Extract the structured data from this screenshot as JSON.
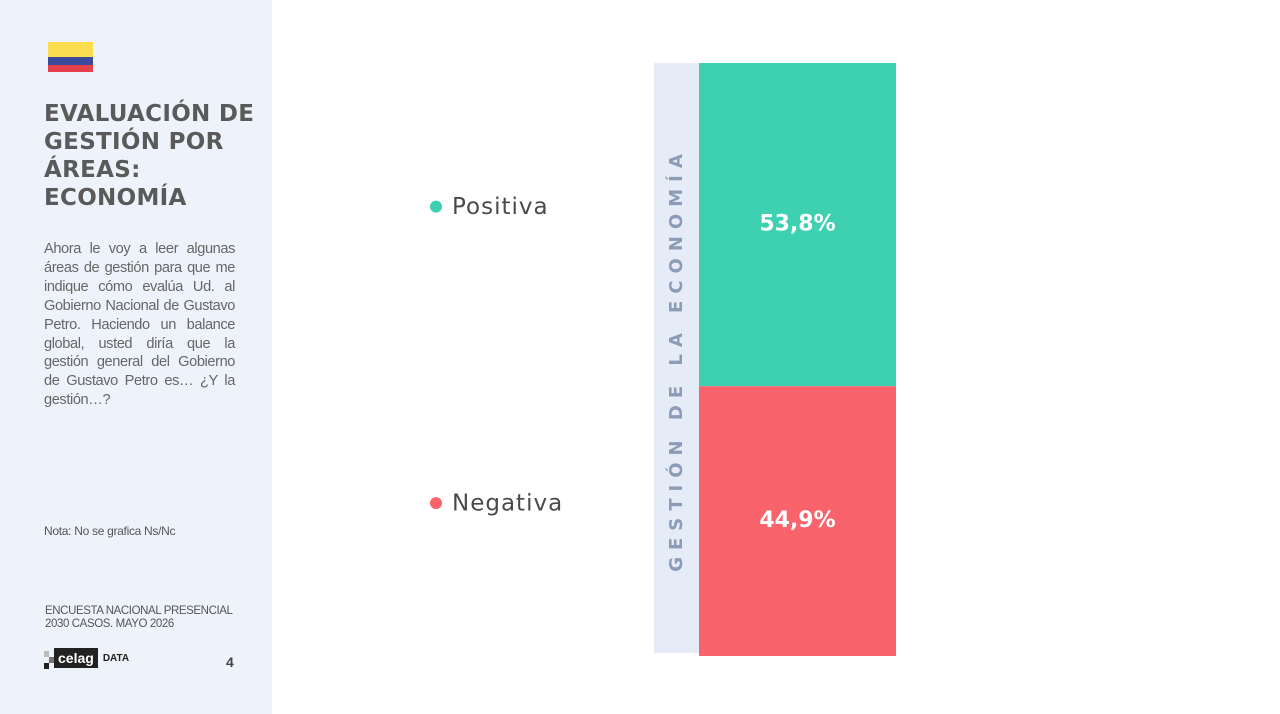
{
  "sidebar": {
    "title_lines": [
      "EVALUACIÓN DE",
      "GESTIÓN POR",
      "ÁREAS:",
      "ECONOMÍA"
    ],
    "description": "Ahora le voy a leer algunas áreas de gestión para que me indique cómo evalúa Ud. al Gobierno Nacional de Gustavo Petro. Haciendo un balance global, usted diría que la gestión general del Gobierno de Gustavo Petro es… ¿Y la gestión…?",
    "note": "Nota: No se grafica Ns/Nc",
    "source_lines": [
      "ENCUESTA NACIONAL PRESENCIAL",
      "2030 CASOS. MAYO 2026"
    ],
    "logo": [
      "celag",
      "DATA"
    ],
    "page": 4
  },
  "chart_data": {
    "type": "bar",
    "stacked": true,
    "categories": [
      "GESTIÓN DE LA ECONOMÍA"
    ],
    "series": [
      {
        "name": "Positiva",
        "color": "#3dd1b2",
        "values": [
          53.8
        ],
        "value_labels": [
          "53,8%"
        ]
      },
      {
        "name": "Negativa",
        "color": "#f9636b",
        "values": [
          44.9
        ],
        "value_labels": [
          "44,9%"
        ]
      }
    ]
  }
}
